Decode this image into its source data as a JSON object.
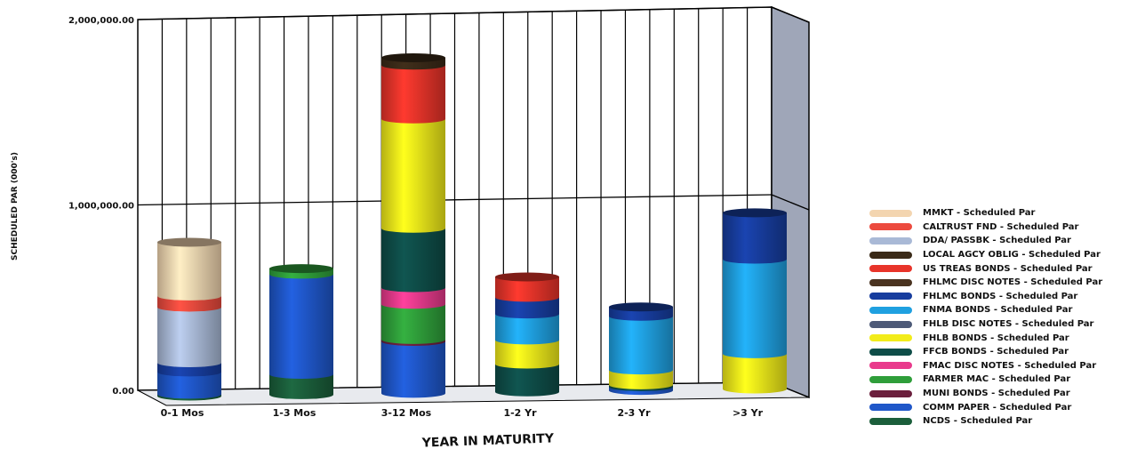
{
  "chart_data": {
    "type": "bar",
    "stacked": true,
    "three_d": true,
    "title": "",
    "xlabel": "YEAR IN MATURITY",
    "ylabel": "SCHEDULED PAR (000's)",
    "ylim": [
      0,
      2000000
    ],
    "yticks": [
      0,
      1000000,
      2000000
    ],
    "ytick_labels": [
      "0.00",
      "1,000,000.00",
      "2,000,000.00"
    ],
    "grid": true,
    "legend_position": "right",
    "categories": [
      "0-1 Mos",
      "1-3 Mos",
      "3-12 Mos",
      "1-2 Yr",
      "2-3 Yr",
      ">3 Yr"
    ],
    "series": [
      {
        "name": "NCDS - Scheduled Par",
        "color": "#1b5e3b",
        "values": [
          10000,
          110000,
          0,
          0,
          0,
          0
        ]
      },
      {
        "name": "COMM PAPER - Scheduled Par",
        "color": "#1f57c9",
        "values": [
          120000,
          540000,
          280000,
          0,
          20000,
          0
        ]
      },
      {
        "name": "MUNI BONDS - Scheduled Par",
        "color": "#6b1f3d",
        "values": [
          0,
          0,
          10000,
          0,
          0,
          0
        ]
      },
      {
        "name": "FARMER MAC - Scheduled Par",
        "color": "#2f9e3a",
        "values": [
          0,
          30000,
          190000,
          0,
          0,
          0
        ]
      },
      {
        "name": "FMAC DISC NOTES - Scheduled Par",
        "color": "#e93a8c",
        "values": [
          0,
          0,
          90000,
          0,
          0,
          0
        ]
      },
      {
        "name": "FFCB BONDS - Scheduled Par",
        "color": "#0e4d48",
        "values": [
          0,
          0,
          320000,
          150000,
          10000,
          0
        ]
      },
      {
        "name": "FHLB BONDS - Scheduled Par",
        "color": "#f2ec1a",
        "values": [
          0,
          0,
          590000,
          130000,
          80000,
          190000
        ]
      },
      {
        "name": "FHLB DISC NOTES - Scheduled Par",
        "color": "#4d5a78",
        "values": [
          0,
          0,
          0,
          0,
          0,
          0
        ]
      },
      {
        "name": "FNMA BONDS - Scheduled Par",
        "color": "#1fa0e0",
        "values": [
          0,
          0,
          0,
          140000,
          290000,
          510000
        ]
      },
      {
        "name": "FHLMC BONDS - Scheduled Par",
        "color": "#173d9e",
        "values": [
          50000,
          0,
          0,
          90000,
          50000,
          250000
        ]
      },
      {
        "name": "FHLMC DISC NOTES - Scheduled Par",
        "color": "#4a3320",
        "values": [
          0,
          0,
          0,
          0,
          0,
          0
        ]
      },
      {
        "name": "US TREAS BONDS - Scheduled Par",
        "color": "#e8342a",
        "values": [
          0,
          0,
          290000,
          110000,
          0,
          0
        ]
      },
      {
        "name": "LOCAL AGCY OBLIG - Scheduled Par",
        "color": "#3a2a18",
        "values": [
          0,
          0,
          40000,
          0,
          0,
          0
        ]
      },
      {
        "name": "DDA/ PASSBK - Scheduled Par",
        "color": "#a9b9d6",
        "values": [
          300000,
          0,
          0,
          0,
          0,
          0
        ]
      },
      {
        "name": "CALTRUST FND - Scheduled Par",
        "color": "#ec4a3e",
        "values": [
          60000,
          0,
          0,
          0,
          0,
          0
        ]
      },
      {
        "name": "MMKT - Scheduled Par",
        "color": "#f3d5b0",
        "values": [
          290000,
          0,
          0,
          0,
          0,
          0
        ]
      }
    ]
  }
}
